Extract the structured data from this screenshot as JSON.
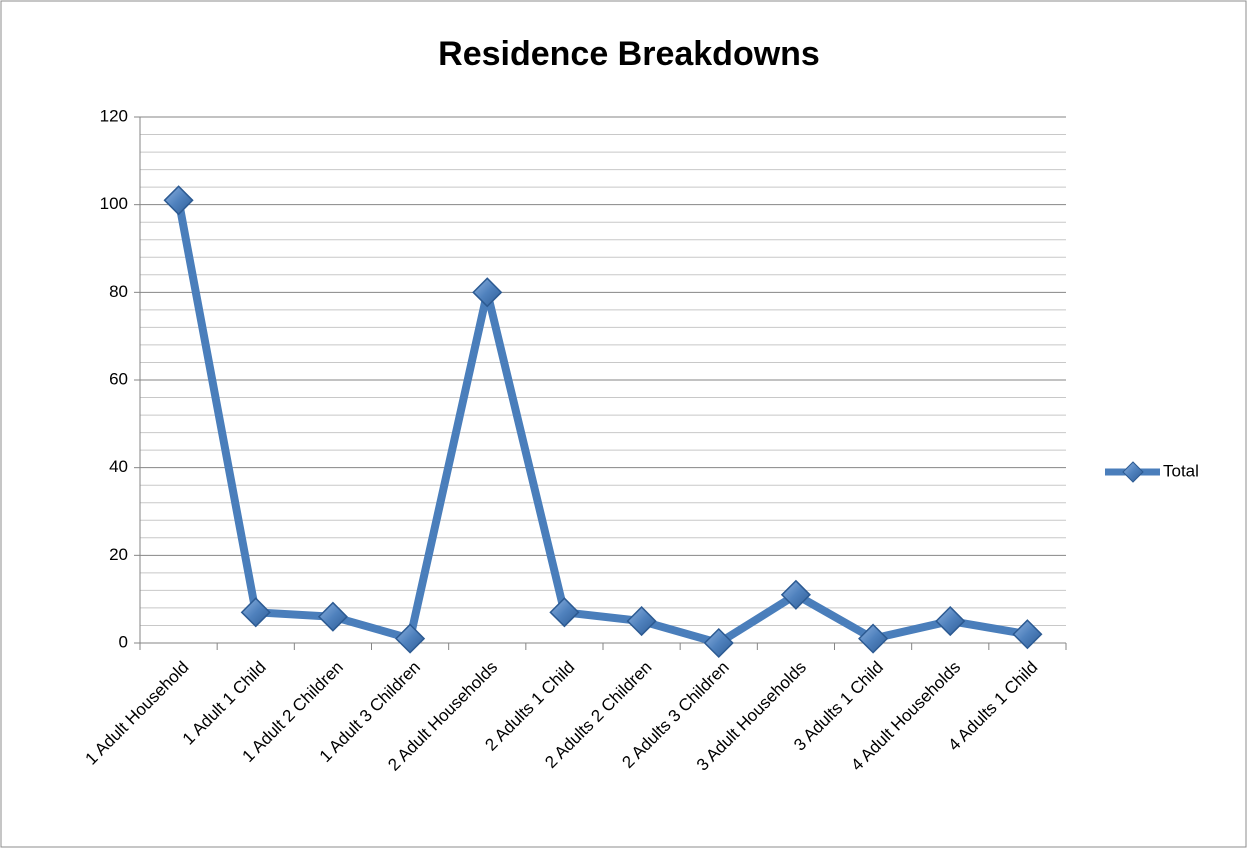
{
  "chart_data": {
    "type": "line",
    "title": "Residence Breakdowns",
    "categories": [
      "1 Adult Household",
      "1 Adult 1 Child",
      "1 Adult 2 Children",
      "1 Adult 3 Children",
      "2 Adult Households",
      "2 Adults 1 Child",
      "2 Adults 2 Children",
      "2 Adults 3 Children",
      "3 Adult Households",
      "3 Adults 1 Child",
      "4 Adult Households",
      "4 Adults 1 Child"
    ],
    "series": [
      {
        "name": "Total",
        "color": "#4a7ebb",
        "values": [
          101,
          7,
          6,
          1,
          80,
          7,
          5,
          0,
          11,
          1,
          5,
          2
        ]
      }
    ],
    "ylim": [
      0,
      120
    ],
    "yticks": [
      0,
      20,
      40,
      60,
      80,
      100,
      120
    ],
    "minor_yticks": [
      4,
      8,
      12,
      16,
      24,
      28,
      32,
      36,
      44,
      48,
      52,
      56,
      64,
      68,
      72,
      76,
      84,
      88,
      92,
      96,
      104,
      108,
      112,
      116
    ],
    "grid": true,
    "legend": "right"
  }
}
